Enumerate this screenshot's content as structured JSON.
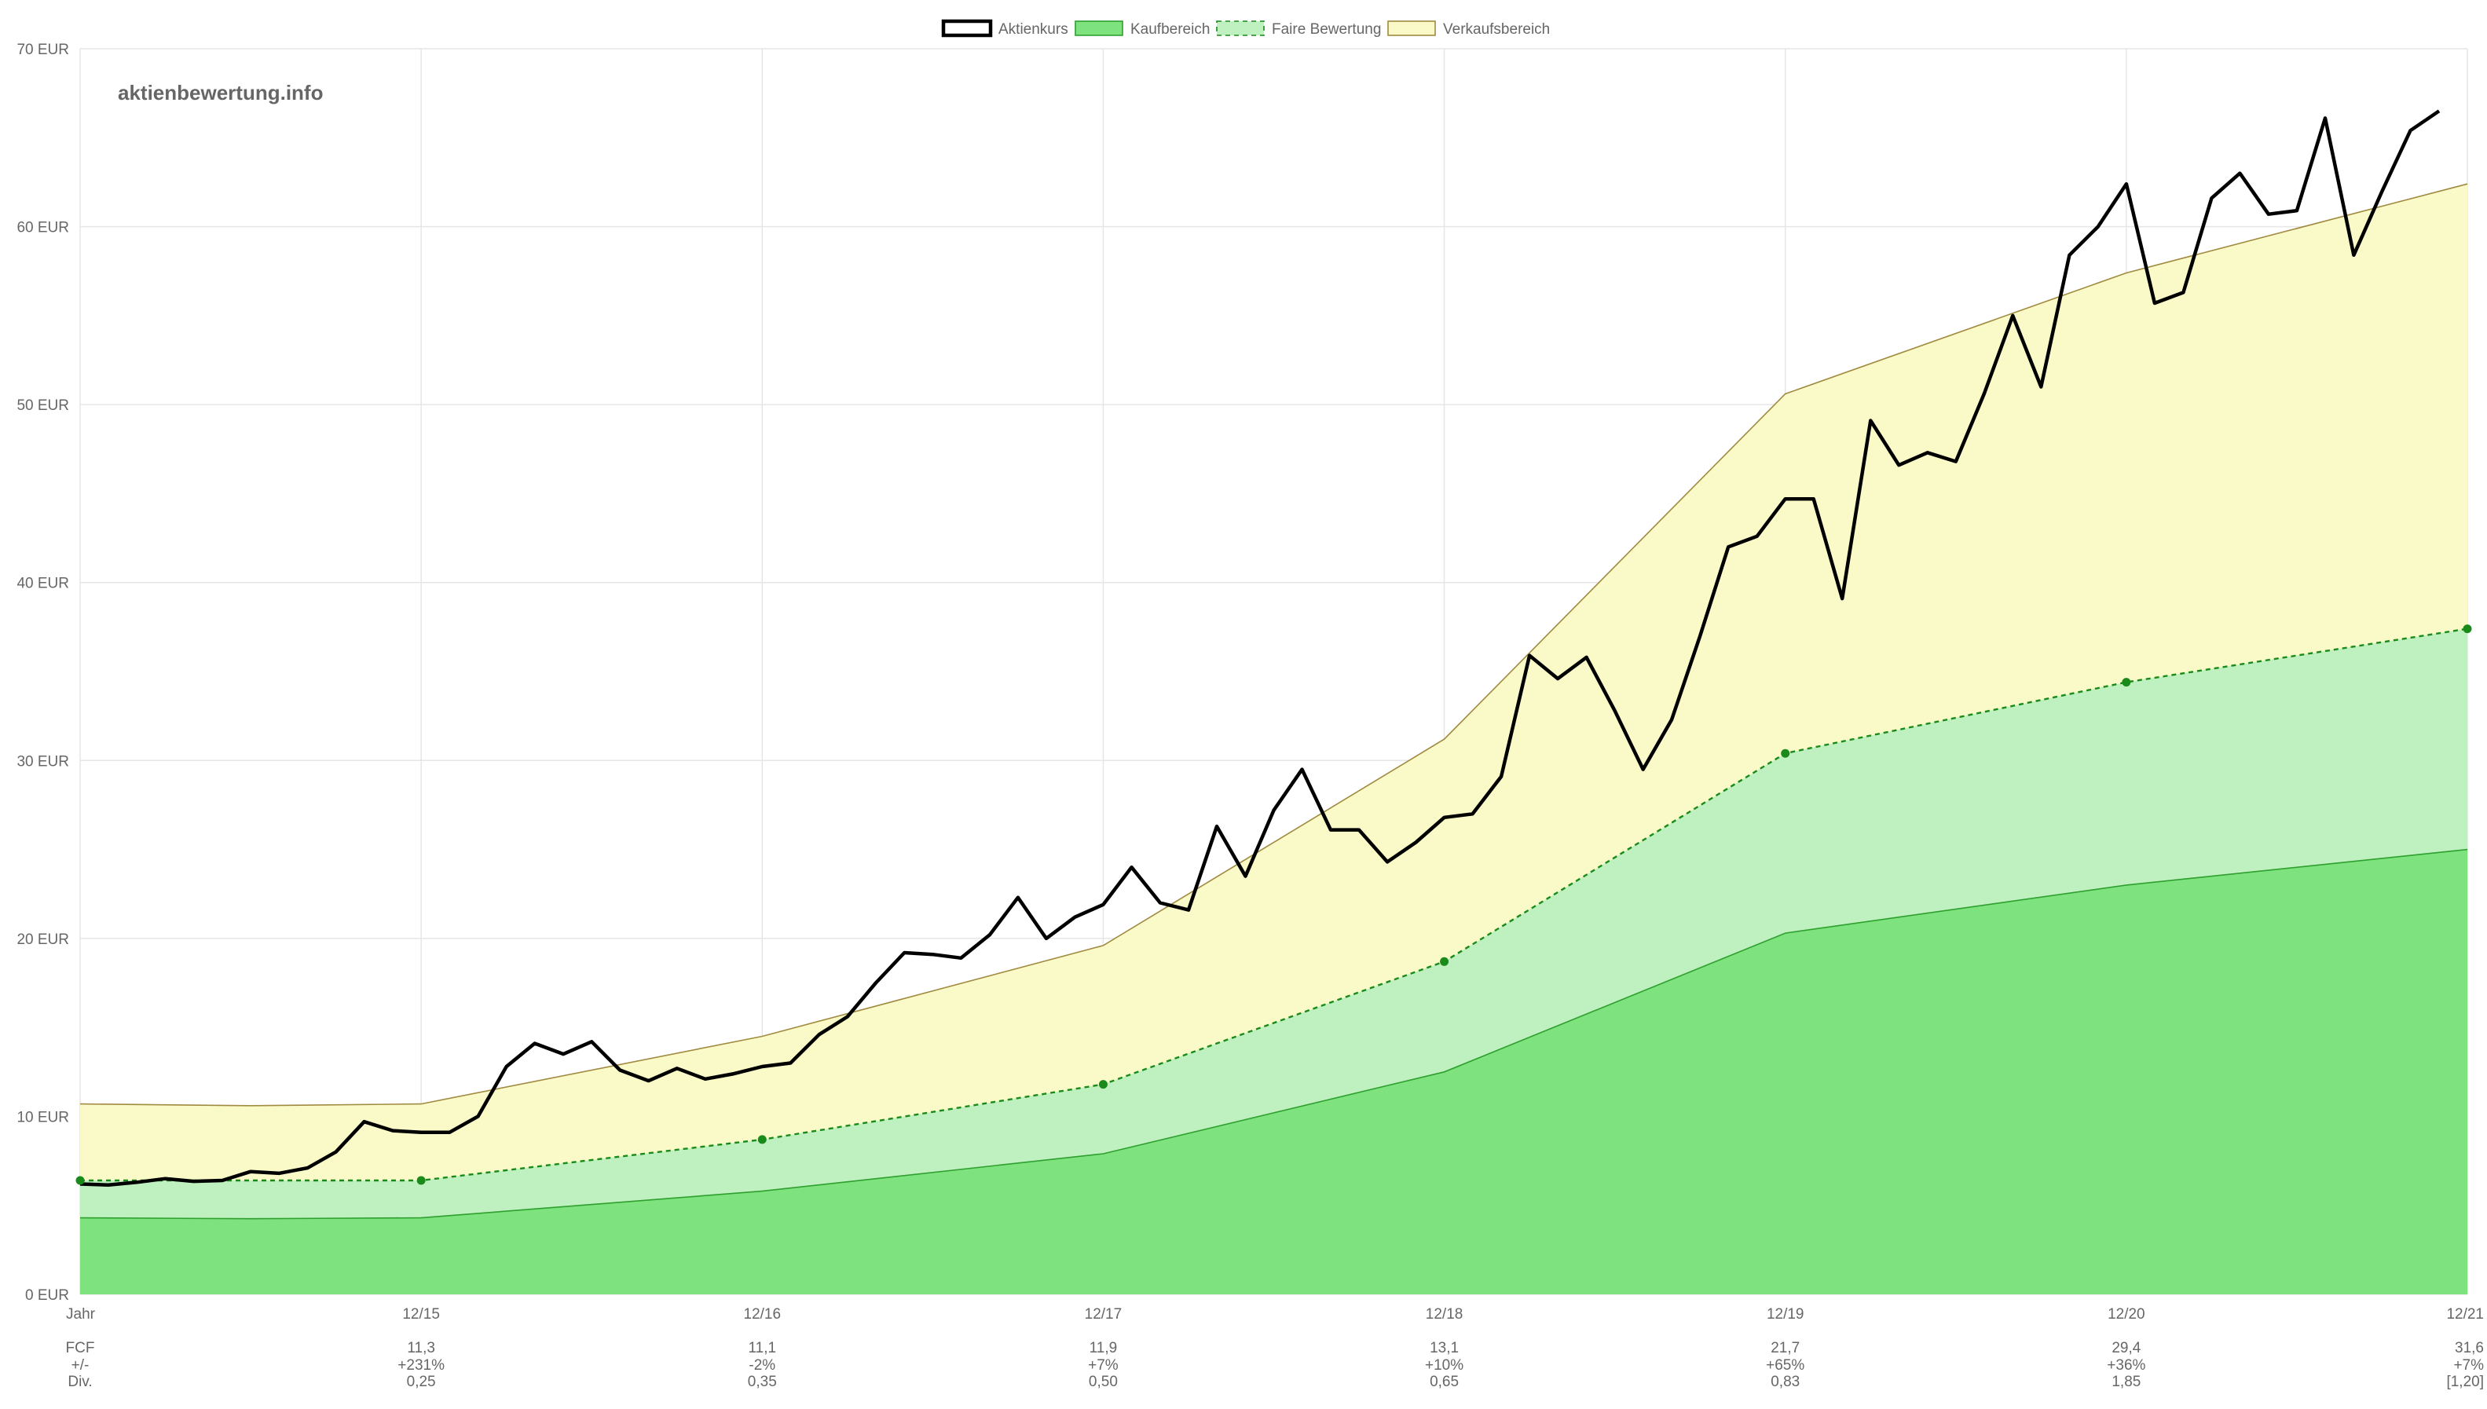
{
  "watermark": "aktienbewertung.info",
  "chart_data": {
    "type": "line",
    "ylim": [
      0,
      70
    ],
    "y_ticks": [
      0,
      10,
      20,
      30,
      40,
      50,
      60,
      70
    ],
    "y_unit": "EUR",
    "x_range": [
      2014.0,
      2021.0
    ],
    "x_ticks": [
      {
        "x": 2014.0,
        "label": "Jahr"
      },
      {
        "x": 2015.0,
        "label": "12/15"
      },
      {
        "x": 2016.0,
        "label": "12/16"
      },
      {
        "x": 2017.0,
        "label": "12/17"
      },
      {
        "x": 2018.0,
        "label": "12/18"
      },
      {
        "x": 2019.0,
        "label": "12/19"
      },
      {
        "x": 2020.0,
        "label": "12/20"
      },
      {
        "x": 2021.0,
        "label": "12/21"
      }
    ],
    "legend": [
      {
        "key": "price",
        "label": "Aktienkurs",
        "fill": "#ffffff",
        "stroke": "#000000",
        "dash": false
      },
      {
        "key": "buy",
        "label": "Kaufbereich",
        "fill": "#7ee27e",
        "stroke": "#2ea02e",
        "dash": false
      },
      {
        "key": "fair",
        "label": "Faire Bewertung",
        "fill": "#bff0bf",
        "stroke": "#1a8a1a",
        "dash": true
      },
      {
        "key": "sell",
        "label": "Verkaufsbereich",
        "fill": "#fafac8",
        "stroke": "#a08a40",
        "dash": false
      }
    ],
    "grid": true,
    "legend_position": "top-center",
    "series": [
      {
        "key": "sell",
        "values": [
          [
            2014.0,
            10.7
          ],
          [
            2014.5,
            10.6
          ],
          [
            2015.0,
            10.7
          ],
          [
            2016.0,
            14.5
          ],
          [
            2017.0,
            19.6
          ],
          [
            2018.0,
            31.2
          ],
          [
            2019.0,
            50.6
          ],
          [
            2020.0,
            57.4
          ],
          [
            2021.0,
            62.4
          ]
        ]
      },
      {
        "key": "fair",
        "values": [
          [
            2014.0,
            6.4
          ],
          [
            2015.0,
            6.4
          ],
          [
            2016.0,
            8.7
          ],
          [
            2017.0,
            11.8
          ],
          [
            2018.0,
            18.7
          ],
          [
            2019.0,
            30.4
          ],
          [
            2020.0,
            34.4
          ],
          [
            2021.0,
            37.4
          ]
        ]
      },
      {
        "key": "buy",
        "values": [
          [
            2014.0,
            4.3
          ],
          [
            2014.5,
            4.25
          ],
          [
            2015.0,
            4.3
          ],
          [
            2016.0,
            5.8
          ],
          [
            2017.0,
            7.9
          ],
          [
            2018.0,
            12.5
          ],
          [
            2019.0,
            20.3
          ],
          [
            2020.0,
            23.0
          ],
          [
            2021.0,
            25.0
          ]
        ]
      },
      {
        "key": "price",
        "values": [
          [
            2014.0,
            6.2
          ],
          [
            2014.083,
            6.15
          ],
          [
            2014.167,
            6.3
          ],
          [
            2014.25,
            6.5
          ],
          [
            2014.333,
            6.35
          ],
          [
            2014.417,
            6.4
          ],
          [
            2014.5,
            6.9
          ],
          [
            2014.583,
            6.8
          ],
          [
            2014.667,
            7.1
          ],
          [
            2014.75,
            8.0
          ],
          [
            2014.833,
            9.7
          ],
          [
            2014.917,
            9.2
          ],
          [
            2015.0,
            9.1
          ],
          [
            2015.083,
            9.1
          ],
          [
            2015.167,
            10.0
          ],
          [
            2015.25,
            12.8
          ],
          [
            2015.333,
            14.1
          ],
          [
            2015.417,
            13.5
          ],
          [
            2015.5,
            14.2
          ],
          [
            2015.583,
            12.6
          ],
          [
            2015.667,
            12.0
          ],
          [
            2015.75,
            12.7
          ],
          [
            2015.833,
            12.1
          ],
          [
            2015.917,
            12.4
          ],
          [
            2016.0,
            12.8
          ],
          [
            2016.083,
            13.0
          ],
          [
            2016.167,
            14.6
          ],
          [
            2016.25,
            15.6
          ],
          [
            2016.333,
            17.5
          ],
          [
            2016.417,
            19.2
          ],
          [
            2016.5,
            19.1
          ],
          [
            2016.583,
            18.9
          ],
          [
            2016.667,
            20.2
          ],
          [
            2016.75,
            22.3
          ],
          [
            2016.833,
            20.0
          ],
          [
            2016.917,
            21.2
          ],
          [
            2017.0,
            21.9
          ],
          [
            2017.083,
            24.0
          ],
          [
            2017.167,
            22.0
          ],
          [
            2017.25,
            21.6
          ],
          [
            2017.333,
            26.3
          ],
          [
            2017.417,
            23.5
          ],
          [
            2017.5,
            27.2
          ],
          [
            2017.583,
            29.5
          ],
          [
            2017.667,
            26.1
          ],
          [
            2017.75,
            26.1
          ],
          [
            2017.833,
            24.3
          ],
          [
            2017.917,
            25.4
          ],
          [
            2018.0,
            26.8
          ],
          [
            2018.083,
            27.0
          ],
          [
            2018.167,
            29.1
          ],
          [
            2018.25,
            35.9
          ],
          [
            2018.333,
            34.6
          ],
          [
            2018.417,
            35.8
          ],
          [
            2018.5,
            32.8
          ],
          [
            2018.583,
            29.5
          ],
          [
            2018.667,
            32.3
          ],
          [
            2018.75,
            37.0
          ],
          [
            2018.833,
            42.0
          ],
          [
            2018.917,
            42.6
          ],
          [
            2019.0,
            44.7
          ],
          [
            2019.083,
            44.7
          ],
          [
            2019.167,
            39.1
          ],
          [
            2019.25,
            49.1
          ],
          [
            2019.333,
            46.6
          ],
          [
            2019.417,
            47.3
          ],
          [
            2019.5,
            46.8
          ],
          [
            2019.583,
            50.6
          ],
          [
            2019.667,
            55.0
          ],
          [
            2019.75,
            51.0
          ],
          [
            2019.833,
            58.4
          ],
          [
            2019.917,
            60.0
          ],
          [
            2020.0,
            62.4
          ],
          [
            2020.083,
            55.7
          ],
          [
            2020.167,
            56.3
          ],
          [
            2020.25,
            61.6
          ],
          [
            2020.333,
            63.0
          ],
          [
            2020.417,
            60.7
          ],
          [
            2020.5,
            60.9
          ],
          [
            2020.583,
            66.1
          ],
          [
            2020.667,
            58.4
          ],
          [
            2020.75,
            62.0
          ],
          [
            2020.833,
            65.4
          ],
          [
            2020.917,
            66.5
          ]
        ]
      }
    ],
    "fair_markers": [
      [
        2014.0,
        6.4
      ],
      [
        2015.0,
        6.4
      ],
      [
        2016.0,
        8.7
      ],
      [
        2017.0,
        11.8
      ],
      [
        2018.0,
        18.7
      ],
      [
        2019.0,
        30.4
      ],
      [
        2020.0,
        34.4
      ],
      [
        2021.0,
        37.4
      ]
    ],
    "table": {
      "rows": [
        {
          "label": "FCF",
          "values": [
            "11,3",
            "11,1",
            "11,9",
            "13,1",
            "21,7",
            "29,4",
            "31,6"
          ]
        },
        {
          "label": "+/-",
          "values": [
            "+231%",
            "-2%",
            "+7%",
            "+10%",
            "+65%",
            "+36%",
            "+7%"
          ]
        },
        {
          "label": "Div.",
          "values": [
            "0,25",
            "0,35",
            "0,50",
            "0,65",
            "0,83",
            "1,85",
            "[1,20]"
          ]
        }
      ]
    }
  }
}
